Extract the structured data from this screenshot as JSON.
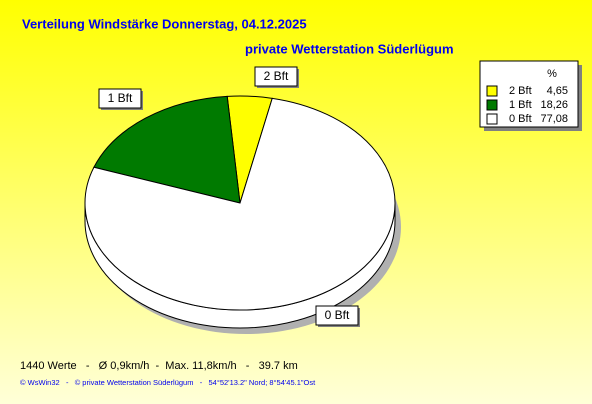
{
  "chart_data": {
    "type": "pie",
    "title": "Verteilung Windstärke  Donnerstag, 04.12.2025",
    "subtitle": "private Wetterstation Süderlügum",
    "categories": [
      "2 Bft",
      "1 Bft",
      "0 Bft"
    ],
    "values": [
      4.65,
      18.26,
      77.08
    ],
    "value_labels": [
      "4,65",
      "18,26",
      "77,08"
    ],
    "colors": [
      "#ffff00",
      "#007a00",
      "#ffffff"
    ],
    "legend_header": "%",
    "footer": "1440 Werte   -   Ø 0,9km/h  -  Max. 11,8km/h   -   39.7 km",
    "credits": "© WsWin32   -   © private Wetterstation Süderlügum   -   54°52'13.2\" Nord; 8°54'45.1\"Ost"
  }
}
